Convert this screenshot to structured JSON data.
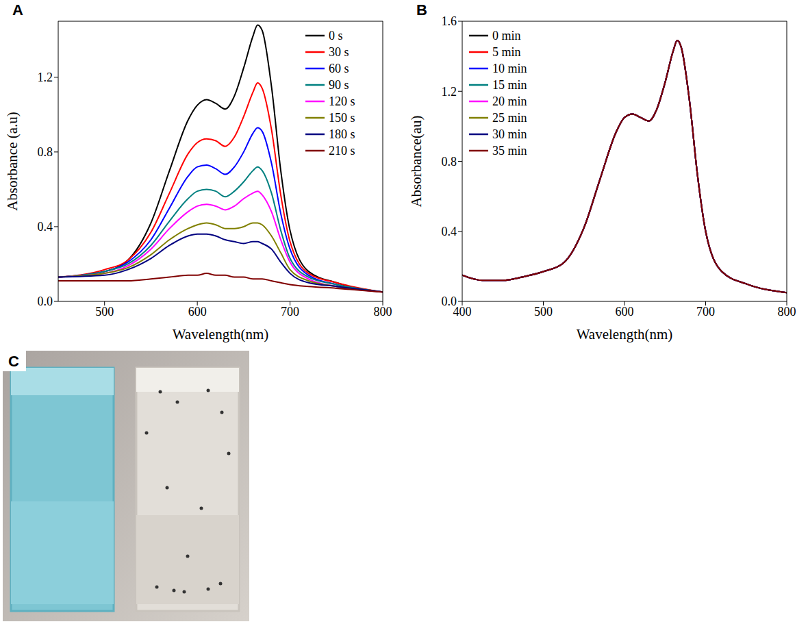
{
  "chart_data": [
    {
      "type": "line",
      "panel": "A",
      "x_label": "Wavelength(nm)",
      "y_label": "Absorbance (a.u)",
      "x": [
        450,
        500,
        525,
        550,
        570,
        590,
        600,
        610,
        620,
        630,
        640,
        650,
        660,
        665,
        670,
        680,
        690,
        700,
        720,
        750,
        800
      ],
      "xlim": [
        450,
        800
      ],
      "xticks": [
        500,
        600,
        700,
        800
      ],
      "ylim": [
        0,
        1.5
      ],
      "yticks": [
        {
          "value": 0,
          "label": "0.0"
        },
        {
          "value": 0.4,
          "label": "0.4"
        },
        {
          "value": 0.8,
          "label": "0.8"
        },
        {
          "value": 1.2,
          "label": "1.2"
        }
      ],
      "grid": false,
      "legend": "upper right",
      "series": [
        {
          "name": "0 s",
          "color": "#000000",
          "values": [
            0.13,
            0.16,
            0.22,
            0.42,
            0.7,
            0.97,
            1.05,
            1.08,
            1.06,
            1.03,
            1.1,
            1.25,
            1.42,
            1.48,
            1.45,
            1.15,
            0.7,
            0.38,
            0.16,
            0.1,
            0.05
          ]
        },
        {
          "name": "30 s",
          "color": "#ff0000",
          "values": [
            0.13,
            0.17,
            0.22,
            0.37,
            0.58,
            0.79,
            0.85,
            0.87,
            0.86,
            0.83,
            0.88,
            0.99,
            1.12,
            1.17,
            1.14,
            0.92,
            0.57,
            0.32,
            0.15,
            0.1,
            0.05
          ]
        },
        {
          "name": "60 s",
          "color": "#0000ff",
          "values": [
            0.13,
            0.16,
            0.21,
            0.33,
            0.5,
            0.67,
            0.72,
            0.73,
            0.71,
            0.68,
            0.72,
            0.8,
            0.9,
            0.93,
            0.91,
            0.74,
            0.47,
            0.28,
            0.14,
            0.09,
            0.05
          ]
        },
        {
          "name": "90 s",
          "color": "#008080",
          "values": [
            0.13,
            0.16,
            0.2,
            0.3,
            0.43,
            0.55,
            0.59,
            0.6,
            0.59,
            0.56,
            0.59,
            0.64,
            0.7,
            0.72,
            0.7,
            0.58,
            0.38,
            0.23,
            0.13,
            0.09,
            0.05
          ]
        },
        {
          "name": "120 s",
          "color": "#ff00ff",
          "values": [
            0.13,
            0.15,
            0.19,
            0.28,
            0.39,
            0.48,
            0.51,
            0.52,
            0.51,
            0.49,
            0.51,
            0.55,
            0.58,
            0.59,
            0.57,
            0.48,
            0.33,
            0.21,
            0.12,
            0.08,
            0.05
          ]
        },
        {
          "name": "150 s",
          "color": "#808000",
          "values": [
            0.13,
            0.15,
            0.18,
            0.25,
            0.33,
            0.39,
            0.41,
            0.42,
            0.41,
            0.39,
            0.39,
            0.4,
            0.42,
            0.42,
            0.41,
            0.35,
            0.26,
            0.17,
            0.11,
            0.08,
            0.05
          ]
        },
        {
          "name": "180 s",
          "color": "#000080",
          "values": [
            0.13,
            0.14,
            0.17,
            0.23,
            0.3,
            0.35,
            0.36,
            0.36,
            0.35,
            0.33,
            0.32,
            0.31,
            0.32,
            0.32,
            0.31,
            0.28,
            0.21,
            0.15,
            0.1,
            0.08,
            0.05
          ]
        },
        {
          "name": "210 s",
          "color": "#800000",
          "values": [
            0.11,
            0.11,
            0.11,
            0.12,
            0.13,
            0.14,
            0.14,
            0.15,
            0.14,
            0.14,
            0.13,
            0.13,
            0.12,
            0.12,
            0.12,
            0.11,
            0.1,
            0.09,
            0.08,
            0.07,
            0.05
          ]
        }
      ]
    },
    {
      "type": "line",
      "panel": "B",
      "x_label": "Wavelength(nm)",
      "y_label": "Absorbance(au)",
      "x": [
        400,
        425,
        450,
        475,
        500,
        525,
        550,
        570,
        590,
        600,
        610,
        620,
        630,
        640,
        650,
        660,
        665,
        670,
        680,
        690,
        700,
        720,
        750,
        800
      ],
      "xlim": [
        400,
        800
      ],
      "xticks": [
        400,
        500,
        600,
        700,
        800
      ],
      "ylim": [
        0,
        1.6
      ],
      "yticks": [
        {
          "value": 0,
          "label": "0.0"
        },
        {
          "value": 0.4,
          "label": "0.4"
        },
        {
          "value": 0.8,
          "label": "0.8"
        },
        {
          "value": 1.2,
          "label": "1.2"
        },
        {
          "value": 1.6,
          "label": "1.6"
        }
      ],
      "grid": false,
      "legend": "upper left",
      "series": [
        {
          "name": "0 min",
          "color": "#000000",
          "values": [
            0.15,
            0.12,
            0.12,
            0.14,
            0.17,
            0.22,
            0.42,
            0.7,
            0.97,
            1.05,
            1.07,
            1.05,
            1.03,
            1.1,
            1.25,
            1.43,
            1.49,
            1.45,
            1.15,
            0.72,
            0.4,
            0.17,
            0.1,
            0.05
          ]
        },
        {
          "name": "5 min",
          "color": "#ff0000",
          "values": [
            0.15,
            0.12,
            0.12,
            0.14,
            0.17,
            0.22,
            0.42,
            0.7,
            0.97,
            1.05,
            1.07,
            1.05,
            1.03,
            1.1,
            1.25,
            1.43,
            1.49,
            1.45,
            1.15,
            0.72,
            0.4,
            0.17,
            0.1,
            0.05
          ]
        },
        {
          "name": "10 min",
          "color": "#0000ff",
          "values": [
            0.15,
            0.12,
            0.12,
            0.14,
            0.17,
            0.22,
            0.42,
            0.7,
            0.97,
            1.05,
            1.07,
            1.05,
            1.03,
            1.1,
            1.25,
            1.43,
            1.49,
            1.45,
            1.15,
            0.72,
            0.4,
            0.17,
            0.1,
            0.05
          ]
        },
        {
          "name": "15 min",
          "color": "#008080",
          "values": [
            0.15,
            0.12,
            0.12,
            0.14,
            0.17,
            0.22,
            0.42,
            0.7,
            0.97,
            1.05,
            1.07,
            1.05,
            1.03,
            1.1,
            1.25,
            1.43,
            1.49,
            1.45,
            1.15,
            0.72,
            0.4,
            0.17,
            0.1,
            0.05
          ]
        },
        {
          "name": "20 min",
          "color": "#ff00ff",
          "values": [
            0.15,
            0.12,
            0.12,
            0.14,
            0.17,
            0.22,
            0.42,
            0.7,
            0.97,
            1.05,
            1.07,
            1.05,
            1.03,
            1.1,
            1.25,
            1.43,
            1.49,
            1.45,
            1.15,
            0.72,
            0.4,
            0.17,
            0.1,
            0.05
          ]
        },
        {
          "name": "25 min",
          "color": "#808000",
          "values": [
            0.15,
            0.12,
            0.12,
            0.14,
            0.17,
            0.22,
            0.42,
            0.7,
            0.97,
            1.05,
            1.07,
            1.05,
            1.03,
            1.1,
            1.25,
            1.43,
            1.49,
            1.45,
            1.15,
            0.72,
            0.4,
            0.17,
            0.1,
            0.05
          ]
        },
        {
          "name": "30 min",
          "color": "#000080",
          "values": [
            0.15,
            0.12,
            0.12,
            0.14,
            0.17,
            0.22,
            0.42,
            0.7,
            0.97,
            1.05,
            1.07,
            1.05,
            1.03,
            1.1,
            1.25,
            1.43,
            1.49,
            1.45,
            1.15,
            0.72,
            0.4,
            0.17,
            0.1,
            0.05
          ]
        },
        {
          "name": "35 min",
          "color": "#800000",
          "values": [
            0.15,
            0.12,
            0.12,
            0.14,
            0.17,
            0.22,
            0.42,
            0.7,
            0.97,
            1.05,
            1.07,
            1.05,
            1.03,
            1.1,
            1.25,
            1.43,
            1.49,
            1.45,
            1.15,
            0.72,
            0.4,
            0.17,
            0.1,
            0.05
          ]
        }
      ]
    },
    {
      "type": "image",
      "panel": "C"
    }
  ]
}
